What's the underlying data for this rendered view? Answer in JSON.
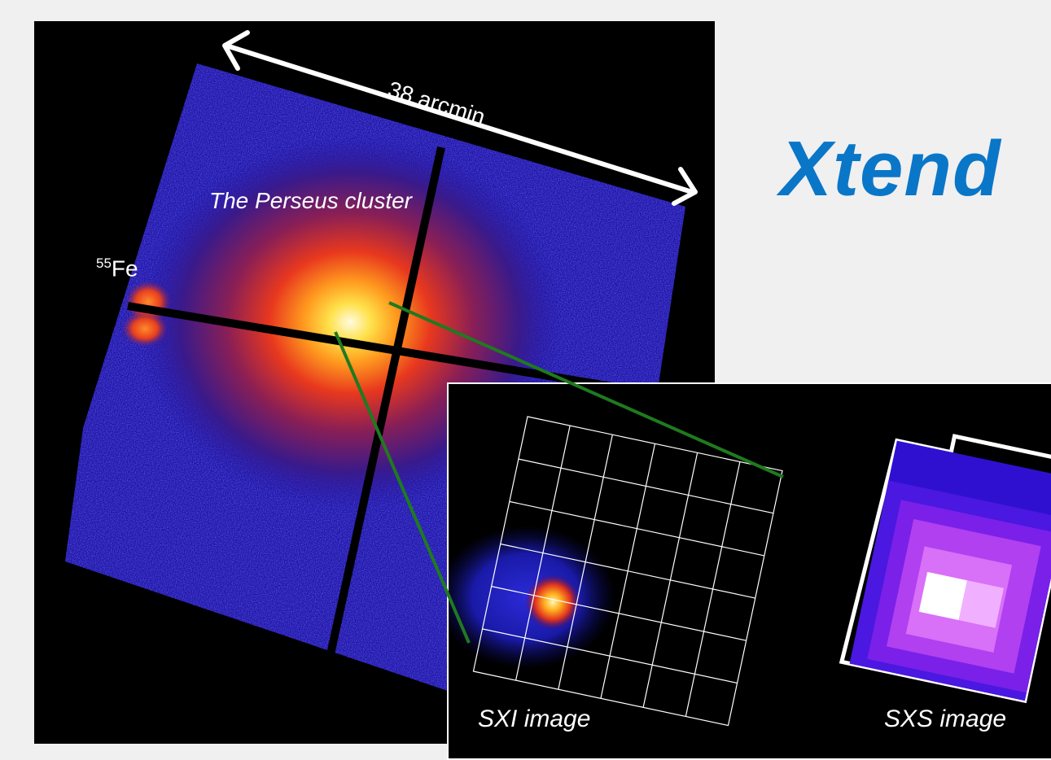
{
  "main_image": {
    "cluster_label": "The Perseus cluster",
    "scale_label": "38 arcmin",
    "fe_superscript": "55",
    "fe_label": "Fe"
  },
  "title": "Xtend",
  "inset": {
    "sxi_label": "SXI image",
    "sxs_label": "SXS image"
  },
  "colors": {
    "title": "#0a76c8",
    "connector_lines": "#1f7a1f",
    "background": "#f0f0f0"
  }
}
